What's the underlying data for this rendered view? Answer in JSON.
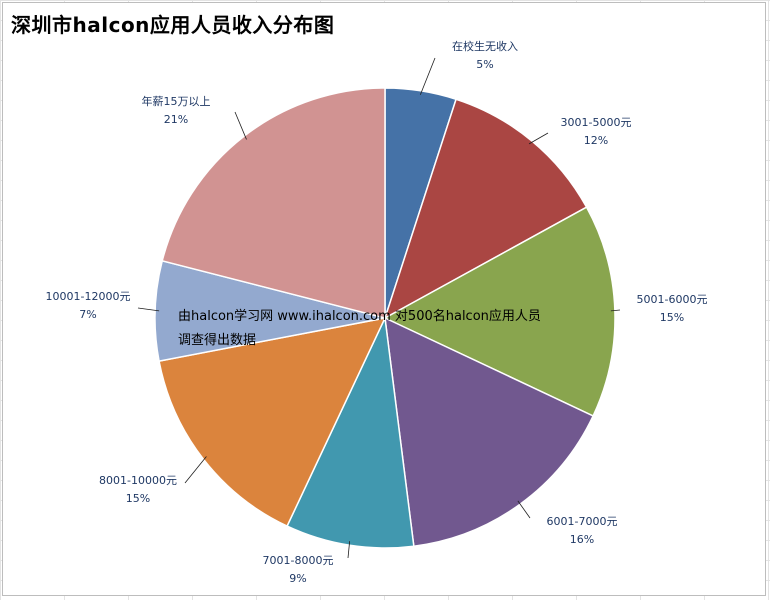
{
  "chart_data": {
    "type": "pie",
    "title": "深圳市halcon应用人员收入分布图",
    "slices": [
      {
        "label": "在校生无收入",
        "value": 5,
        "percent": "5%",
        "color": "#4572a7"
      },
      {
        "label": "3001-5000元",
        "value": 12,
        "percent": "12%",
        "color": "#aa4643"
      },
      {
        "label": "5001-6000元",
        "value": 15,
        "percent": "15%",
        "color": "#89a54e"
      },
      {
        "label": "6001-7000元",
        "value": 16,
        "percent": "16%",
        "color": "#71588f"
      },
      {
        "label": "7001-8000元",
        "value": 9,
        "percent": "9%",
        "color": "#4198af"
      },
      {
        "label": "8001-10000元",
        "value": 15,
        "percent": "15%",
        "color": "#db843d"
      },
      {
        "label": "10001-12000元",
        "value": 7,
        "percent": "7%",
        "color": "#93a9cf"
      },
      {
        "label": "年薪15万以上",
        "value": 21,
        "percent": "21%",
        "color": "#d19392"
      }
    ],
    "legend": "none",
    "note_lines": [
      "由halcon学习网  www.ihalcon.com 对500名halcon应用人员",
      "调查得出数据"
    ]
  }
}
